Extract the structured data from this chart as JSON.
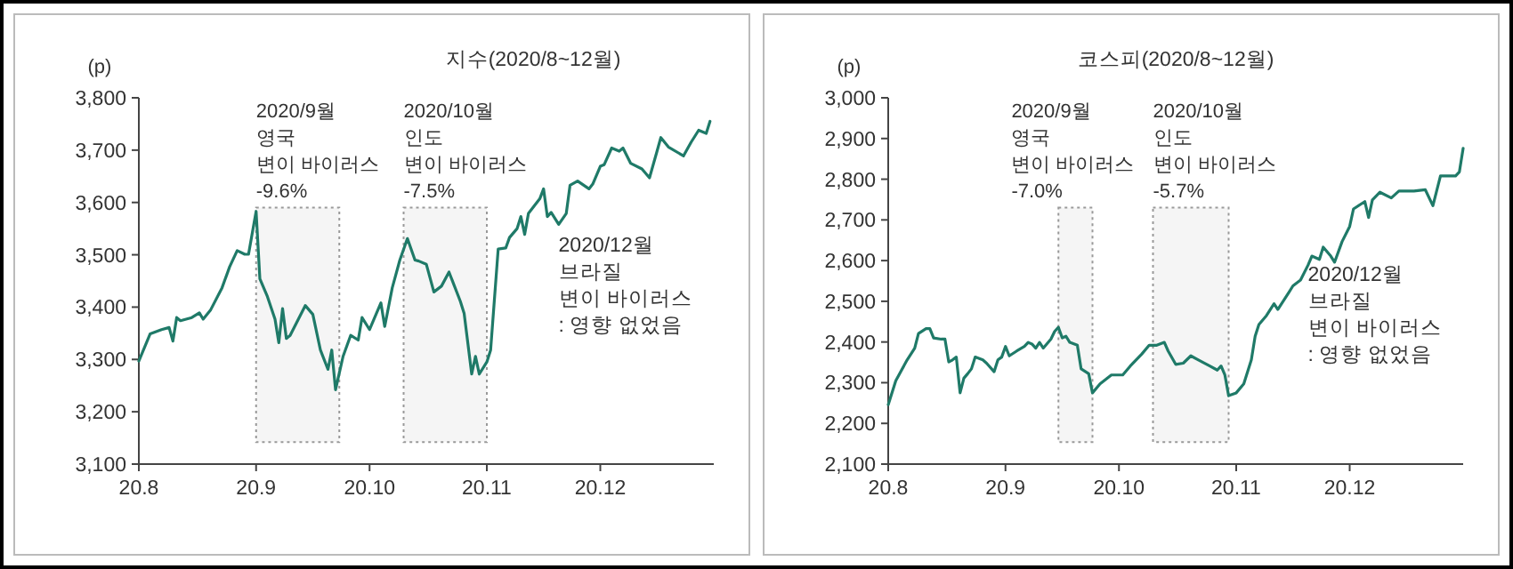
{
  "chart_data": [
    {
      "type": "line",
      "title": "지수(2020/8~12월)",
      "ylabel": "(p)",
      "xlim": [
        "2020-08-01",
        "2020-12-31"
      ],
      "ylim": [
        3100,
        3800
      ],
      "yticks": [
        {
          "value": 3100,
          "label": "3,100"
        },
        {
          "value": 3200,
          "label": "3,200"
        },
        {
          "value": 3300,
          "label": "3,300"
        },
        {
          "value": 3400,
          "label": "3,400"
        },
        {
          "value": 3500,
          "label": "3,500"
        },
        {
          "value": 3600,
          "label": "3,600"
        },
        {
          "value": 3700,
          "label": "3,700"
        },
        {
          "value": 3800,
          "label": "3,800"
        }
      ],
      "xticks": [
        {
          "value": "2020-08-01",
          "label": "20.8"
        },
        {
          "value": "2020-09-01",
          "label": "20.9"
        },
        {
          "value": "2020-10-01",
          "label": "20.10"
        },
        {
          "value": "2020-11-01",
          "label": "20.11"
        },
        {
          "value": "2020-12-01",
          "label": "20.12"
        }
      ],
      "grid": false,
      "marker": "none",
      "line_style": "solid",
      "series": [
        {
          "color": "#1f7a68",
          "x": [
            "2020-08-01",
            "2020-08-04",
            "2020-08-07",
            "2020-08-09",
            "2020-08-10",
            "2020-08-11",
            "2020-08-12",
            "2020-08-15",
            "2020-08-17",
            "2020-08-18",
            "2020-08-20",
            "2020-08-23",
            "2020-08-25",
            "2020-08-27",
            "2020-08-29",
            "2020-08-30",
            "2020-09-01",
            "2020-09-02",
            "2020-09-04",
            "2020-09-06",
            "2020-09-07",
            "2020-09-08",
            "2020-09-09",
            "2020-09-10",
            "2020-09-14",
            "2020-09-16",
            "2020-09-18",
            "2020-09-20",
            "2020-09-21",
            "2020-09-22",
            "2020-09-24",
            "2020-09-26",
            "2020-09-28",
            "2020-09-29",
            "2020-10-01",
            "2020-10-04",
            "2020-10-05",
            "2020-10-07",
            "2020-10-09",
            "2020-10-11",
            "2020-10-13",
            "2020-10-14",
            "2020-10-16",
            "2020-10-18",
            "2020-10-20",
            "2020-10-22",
            "2020-10-25",
            "2020-10-26",
            "2020-10-28",
            "2020-10-29",
            "2020-10-30",
            "2020-11-01",
            "2020-11-02",
            "2020-11-04",
            "2020-11-06",
            "2020-11-07",
            "2020-11-09",
            "2020-11-10",
            "2020-11-11",
            "2020-11-12",
            "2020-11-15",
            "2020-11-16",
            "2020-11-17",
            "2020-11-18",
            "2020-11-20",
            "2020-11-22",
            "2020-11-23",
            "2020-11-25",
            "2020-11-28",
            "2020-11-29",
            "2020-12-01",
            "2020-12-02",
            "2020-12-04",
            "2020-12-06",
            "2020-12-07",
            "2020-12-09",
            "2020-12-12",
            "2020-12-14",
            "2020-12-16",
            "2020-12-17",
            "2020-12-19",
            "2020-12-23",
            "2020-12-25",
            "2020-12-27",
            "2020-12-29",
            "2020-12-30"
          ],
          "values": [
            3297,
            3349,
            3357,
            3361,
            3335,
            3380,
            3374,
            3380,
            3389,
            3377,
            3395,
            3437,
            3477,
            3508,
            3501,
            3501,
            3583,
            3454,
            3420,
            3377,
            3332,
            3397,
            3340,
            3346,
            3403,
            3386,
            3318,
            3281,
            3318,
            3242,
            3306,
            3346,
            3337,
            3380,
            3357,
            3408,
            3363,
            3437,
            3490,
            3531,
            3490,
            3488,
            3482,
            3429,
            3440,
            3467,
            3411,
            3388,
            3272,
            3306,
            3272,
            3295,
            3318,
            3511,
            3513,
            3533,
            3550,
            3573,
            3539,
            3579,
            3607,
            3626,
            3573,
            3581,
            3558,
            3579,
            3633,
            3641,
            3626,
            3635,
            3669,
            3672,
            3704,
            3698,
            3704,
            3675,
            3664,
            3647,
            3698,
            3724,
            3706,
            3689,
            3715,
            3738,
            3732,
            3755
          ]
        }
      ],
      "bands": [
        {
          "axis": "x",
          "from": "2020-09-01",
          "to": "2020-09-23",
          "label": "2020/9월\n영국\n변이 바이러스\n-9.6%",
          "color": "#999999"
        },
        {
          "axis": "x",
          "from": "2020-10-10",
          "to": "2020-11-01",
          "label": "2020/10월\n인도\n변이 바이러스\n-7.5%",
          "color": "#999999"
        }
      ],
      "annotations": [
        "2020/12월\n브라질\n변이 바이러스\n: 영향 없었음"
      ]
    },
    {
      "type": "line",
      "title": "코스피(2020/8~12월)",
      "ylabel": "(p)",
      "xlim": [
        "2020-08-01",
        "2020-12-31"
      ],
      "ylim": [
        2100,
        3000
      ],
      "yticks": [
        {
          "value": 2100,
          "label": "2,100"
        },
        {
          "value": 2200,
          "label": "2,200"
        },
        {
          "value": 2300,
          "label": "2,300"
        },
        {
          "value": 2400,
          "label": "2,400"
        },
        {
          "value": 2500,
          "label": "2,500"
        },
        {
          "value": 2600,
          "label": "2,600"
        },
        {
          "value": 2700,
          "label": "2,700"
        },
        {
          "value": 2800,
          "label": "2,800"
        },
        {
          "value": 2900,
          "label": "2,900"
        },
        {
          "value": 3000,
          "label": "3,000"
        }
      ],
      "xticks": [
        {
          "value": "2020-08-01",
          "label": "20.8"
        },
        {
          "value": "2020-09-01",
          "label": "20.9"
        },
        {
          "value": "2020-10-01",
          "label": "20.10"
        },
        {
          "value": "2020-11-01",
          "label": "20.11"
        },
        {
          "value": "2020-12-01",
          "label": "20.12"
        }
      ],
      "grid": false,
      "marker": "none",
      "line_style": "solid",
      "series": [
        {
          "color": "#1f7a68",
          "x": [
            "2020-08-01",
            "2020-08-03",
            "2020-08-06",
            "2020-08-08",
            "2020-08-09",
            "2020-08-11",
            "2020-08-12",
            "2020-08-13",
            "2020-08-15",
            "2020-08-16",
            "2020-08-17",
            "2020-08-18",
            "2020-08-19",
            "2020-08-20",
            "2020-08-21",
            "2020-08-22",
            "2020-08-23",
            "2020-08-24",
            "2020-08-26",
            "2020-08-27",
            "2020-08-29",
            "2020-08-30",
            "2020-08-31",
            "2020-09-01",
            "2020-09-02",
            "2020-09-04",
            "2020-09-06",
            "2020-09-07",
            "2020-09-08",
            "2020-09-09",
            "2020-09-10",
            "2020-09-11",
            "2020-09-13",
            "2020-09-14",
            "2020-09-15",
            "2020-09-16",
            "2020-09-17",
            "2020-09-18",
            "2020-09-20",
            "2020-09-21",
            "2020-09-23",
            "2020-09-24",
            "2020-09-26",
            "2020-09-29",
            "2020-10-02",
            "2020-10-04",
            "2020-10-07",
            "2020-10-09",
            "2020-10-11",
            "2020-10-13",
            "2020-10-14",
            "2020-10-16",
            "2020-10-18",
            "2020-10-20",
            "2020-10-22",
            "2020-10-25",
            "2020-10-27",
            "2020-10-28",
            "2020-10-29",
            "2020-10-30",
            "2020-11-01",
            "2020-11-03",
            "2020-11-05",
            "2020-11-06",
            "2020-11-07",
            "2020-11-09",
            "2020-11-11",
            "2020-11-12",
            "2020-11-15",
            "2020-11-16",
            "2020-11-18",
            "2020-11-20",
            "2020-11-21",
            "2020-11-23",
            "2020-11-24",
            "2020-11-26",
            "2020-11-27",
            "2020-11-29",
            "2020-12-01",
            "2020-12-02",
            "2020-12-05",
            "2020-12-06",
            "2020-12-07",
            "2020-12-09",
            "2020-12-12",
            "2020-12-14",
            "2020-12-18",
            "2020-12-21",
            "2020-12-23",
            "2020-12-25",
            "2020-12-29",
            "2020-12-30",
            "2020-12-31"
          ],
          "values": [
            2246,
            2305,
            2356,
            2385,
            2421,
            2433,
            2433,
            2410,
            2407,
            2407,
            2351,
            2356,
            2363,
            2275,
            2311,
            2322,
            2334,
            2363,
            2356,
            2348,
            2327,
            2356,
            2363,
            2389,
            2366,
            2378,
            2389,
            2399,
            2395,
            2385,
            2399,
            2385,
            2407,
            2426,
            2436,
            2410,
            2414,
            2399,
            2392,
            2334,
            2322,
            2275,
            2297,
            2319,
            2319,
            2341,
            2370,
            2392,
            2392,
            2399,
            2378,
            2345,
            2348,
            2366,
            2356,
            2341,
            2331,
            2341,
            2319,
            2268,
            2275,
            2297,
            2356,
            2414,
            2443,
            2465,
            2494,
            2480,
            2523,
            2538,
            2552,
            2589,
            2611,
            2603,
            2633,
            2611,
            2596,
            2647,
            2684,
            2727,
            2745,
            2706,
            2749,
            2768,
            2754,
            2771,
            2771,
            2774,
            2735,
            2808,
            2808,
            2818,
            2876
          ]
        }
      ],
      "bands": [
        {
          "axis": "x",
          "from": "2020-09-15",
          "to": "2020-09-24",
          "label": "2020/9월\n영국\n변이 바이러스\n-7.0%",
          "color": "#999999"
        },
        {
          "axis": "x",
          "from": "2020-10-10",
          "to": "2020-10-30",
          "label": "2020/10월\n인도\n변이 바이러스\n-5.7%",
          "color": "#999999"
        }
      ],
      "annotations": [
        "2020/12월\n브라질\n변이 바이러스\n: 영향 없었음"
      ]
    }
  ]
}
